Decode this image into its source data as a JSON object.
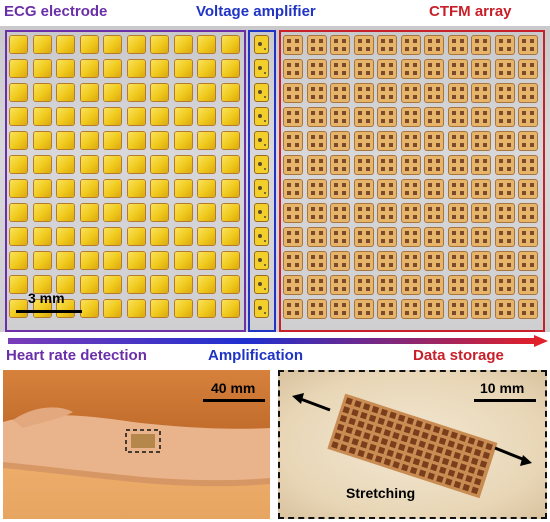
{
  "labels": {
    "ecg": "ECG electrode",
    "amp": "Voltage amplifier",
    "ctfm": "CTFM array"
  },
  "stages": {
    "heart": "Heart rate detection",
    "amplification": "Amplification",
    "storage": "Data storage"
  },
  "scale": {
    "top": "3 mm",
    "arm": "40 mm",
    "stretch": "10 mm"
  },
  "caption": {
    "stretching": "Stretching"
  },
  "colors": {
    "ecg": "#6b2fa8",
    "amp": "#1f34c4",
    "ctfm": "#c8202a"
  }
}
